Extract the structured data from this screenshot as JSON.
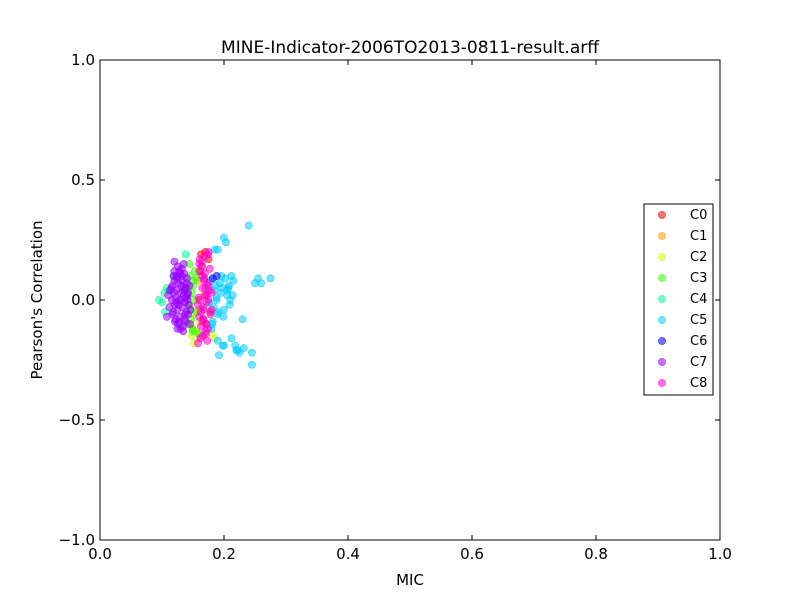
{
  "chart_data": {
    "type": "scatter",
    "title": "MINE-Indicator-2006TO2013-0811-result.arff",
    "xlabel": "MIC",
    "ylabel": "Pearson's Correlation",
    "xlim": [
      0.0,
      1.0
    ],
    "ylim": [
      -1.0,
      1.0
    ],
    "xticks": [
      0.0,
      0.2,
      0.4,
      0.6,
      0.8,
      1.0
    ],
    "xtick_labels": [
      "0.0",
      "0.2",
      "0.4",
      "0.6",
      "0.8",
      "1.0"
    ],
    "yticks": [
      -1.0,
      -0.5,
      0.0,
      0.5,
      1.0
    ],
    "ytick_labels": [
      "−1.0",
      "−0.5",
      "0.0",
      "0.5",
      "1.0"
    ],
    "grid": false,
    "legend_position": "right",
    "series": [
      {
        "name": "C0",
        "color": "#ff0000",
        "x": [
          0.163,
          0.17,
          0.175,
          0.166,
          0.172,
          0.16,
          0.178
        ],
        "y": [
          0.19,
          0.2,
          0.17,
          -0.08,
          -0.1,
          0.12,
          -0.05
        ]
      },
      {
        "name": "C1",
        "color": "#ff9900",
        "x": [
          0.158,
          0.165,
          0.16,
          0.168,
          0.162
        ],
        "y": [
          0.08,
          0.14,
          -0.04,
          0.02,
          -0.15
        ]
      },
      {
        "name": "C2",
        "color": "#ccff00",
        "x": [
          0.15,
          0.148,
          0.152,
          0.146,
          0.155,
          0.18,
          0.185,
          0.143,
          0.15,
          0.158,
          0.145,
          0.16
        ],
        "y": [
          -0.12,
          -0.15,
          -0.18,
          -0.1,
          -0.13,
          -0.14,
          -0.16,
          0.05,
          -0.06,
          0.0,
          -0.02,
          -0.09
        ]
      },
      {
        "name": "C3",
        "color": "#33ff00",
        "x": [
          0.145,
          0.15,
          0.14,
          0.148,
          0.152,
          0.143,
          0.155,
          0.147,
          0.141,
          0.149,
          0.153,
          0.144,
          0.158,
          0.151,
          0.146,
          0.142,
          0.156,
          0.15
        ],
        "y": [
          0.1,
          0.08,
          0.05,
          0.03,
          0.0,
          -0.02,
          -0.05,
          -0.08,
          -0.1,
          -0.12,
          0.12,
          0.15,
          -0.14,
          0.06,
          -0.04,
          0.02,
          0.09,
          -0.13
        ]
      },
      {
        "name": "C4",
        "color": "#00ff99",
        "x": [
          0.108,
          0.104,
          0.1,
          0.095,
          0.112,
          0.138,
          0.105,
          0.118
        ],
        "y": [
          0.05,
          0.03,
          -0.01,
          0.0,
          0.04,
          0.19,
          -0.05,
          0.1
        ]
      },
      {
        "name": "C5",
        "color": "#00ccff",
        "x": [
          0.2,
          0.203,
          0.208,
          0.212,
          0.215,
          0.22,
          0.225,
          0.245,
          0.25,
          0.255,
          0.26,
          0.275,
          0.24,
          0.23,
          0.185,
          0.19,
          0.205,
          0.21,
          0.218,
          0.222,
          0.198,
          0.192,
          0.232,
          0.245,
          0.19,
          0.18,
          0.182,
          0.212,
          0.2,
          0.205,
          0.195,
          0.188,
          0.178,
          0.186,
          0.196,
          0.183,
          0.191,
          0.199,
          0.207,
          0.214,
          0.176,
          0.184,
          0.193,
          0.202,
          0.209,
          0.2,
          0.19,
          0.181,
          0.188,
          0.197
        ],
        "y": [
          0.26,
          0.24,
          0.06,
          0.1,
          0.08,
          -0.21,
          -0.22,
          -0.27,
          0.07,
          0.09,
          0.07,
          0.09,
          0.31,
          -0.08,
          0.21,
          0.21,
          0.02,
          0.0,
          -0.19,
          -0.21,
          -0.19,
          -0.23,
          -0.2,
          -0.22,
          -0.17,
          -0.12,
          -0.09,
          -0.16,
          -0.19,
          0.04,
          0.03,
          0.01,
          0.08,
          0.06,
          0.1,
          -0.03,
          -0.05,
          -0.07,
          0.05,
          0.02,
          -0.01,
          0.04,
          0.07,
          0.09,
          -0.02,
          -0.04,
          -0.06,
          -0.1,
          0.0,
          0.05
        ]
      },
      {
        "name": "C6",
        "color": "#0000ff",
        "x": [
          0.188,
          0.182
        ],
        "y": [
          0.1,
          0.09
        ]
      },
      {
        "name": "C7",
        "color": "#9900ff",
        "x": [
          0.11,
          0.112,
          0.115,
          0.118,
          0.12,
          0.122,
          0.124,
          0.126,
          0.128,
          0.13,
          0.132,
          0.134,
          0.136,
          0.138,
          0.14,
          0.142,
          0.144,
          0.116,
          0.119,
          0.121,
          0.123,
          0.125,
          0.127,
          0.129,
          0.131,
          0.133,
          0.135,
          0.137,
          0.139,
          0.141,
          0.143,
          0.113,
          0.117,
          0.124,
          0.128,
          0.132,
          0.136,
          0.14,
          0.126,
          0.12,
          0.134,
          0.13,
          0.138,
          0.142,
          0.146,
          0.117,
          0.122,
          0.127,
          0.131,
          0.135,
          0.139,
          0.125,
          0.129,
          0.133,
          0.137,
          0.121,
          0.141,
          0.128,
          0.123,
          0.136,
          0.135,
          0.119,
          0.108,
          0.145,
          0.12
        ],
        "y": [
          0.02,
          -0.03,
          0.05,
          -0.05,
          0.08,
          -0.08,
          0.1,
          -0.1,
          0.12,
          -0.12,
          0.13,
          -0.11,
          0.11,
          -0.09,
          0.09,
          -0.06,
          0.06,
          0.0,
          0.03,
          -0.02,
          0.04,
          -0.04,
          0.07,
          -0.07,
          0.06,
          -0.03,
          0.02,
          -0.01,
          0.01,
          0.0,
          -0.02,
          0.04,
          -0.06,
          0.09,
          -0.09,
          0.1,
          -0.08,
          0.07,
          0.14,
          0.12,
          -0.13,
          0.0,
          0.05,
          0.03,
          -0.04,
          0.06,
          0.01,
          -0.02,
          0.03,
          0.05,
          -0.05,
          -0.12,
          0.11,
          0.08,
          -0.06,
          -0.09,
          0.02,
          0.0,
          -0.01,
          0.04,
          0.15,
          0.1,
          -0.07,
          -0.1,
          0.16
        ]
      },
      {
        "name": "C8",
        "color": "#ff00cc",
        "x": [
          0.16,
          0.162,
          0.165,
          0.168,
          0.17,
          0.172,
          0.175,
          0.158,
          0.163,
          0.167,
          0.171,
          0.174,
          0.161,
          0.164,
          0.169,
          0.173,
          0.176,
          0.159,
          0.166,
          0.178,
          0.165,
          0.17,
          0.162,
          0.168,
          0.175,
          0.18,
          0.172,
          0.167,
          0.16,
          0.163,
          0.171,
          0.177,
          0.164,
          0.169,
          0.174,
          0.158,
          0.166,
          0.173,
          0.161,
          0.17,
          0.165,
          0.18,
          0.175
        ],
        "y": [
          0.15,
          0.12,
          0.1,
          0.08,
          0.05,
          0.02,
          0.0,
          -0.02,
          -0.05,
          -0.08,
          -0.1,
          -0.12,
          0.17,
          0.14,
          0.11,
          0.07,
          0.04,
          0.01,
          -0.03,
          -0.06,
          -0.09,
          -0.13,
          -0.16,
          0.09,
          0.06,
          0.03,
          -0.01,
          -0.04,
          -0.07,
          -0.11,
          -0.14,
          0.13,
          0.16,
          0.18,
          0.19,
          -0.18,
          -0.15,
          -0.17,
          0.0,
          0.02,
          0.05,
          -0.04,
          0.2
        ]
      }
    ]
  }
}
